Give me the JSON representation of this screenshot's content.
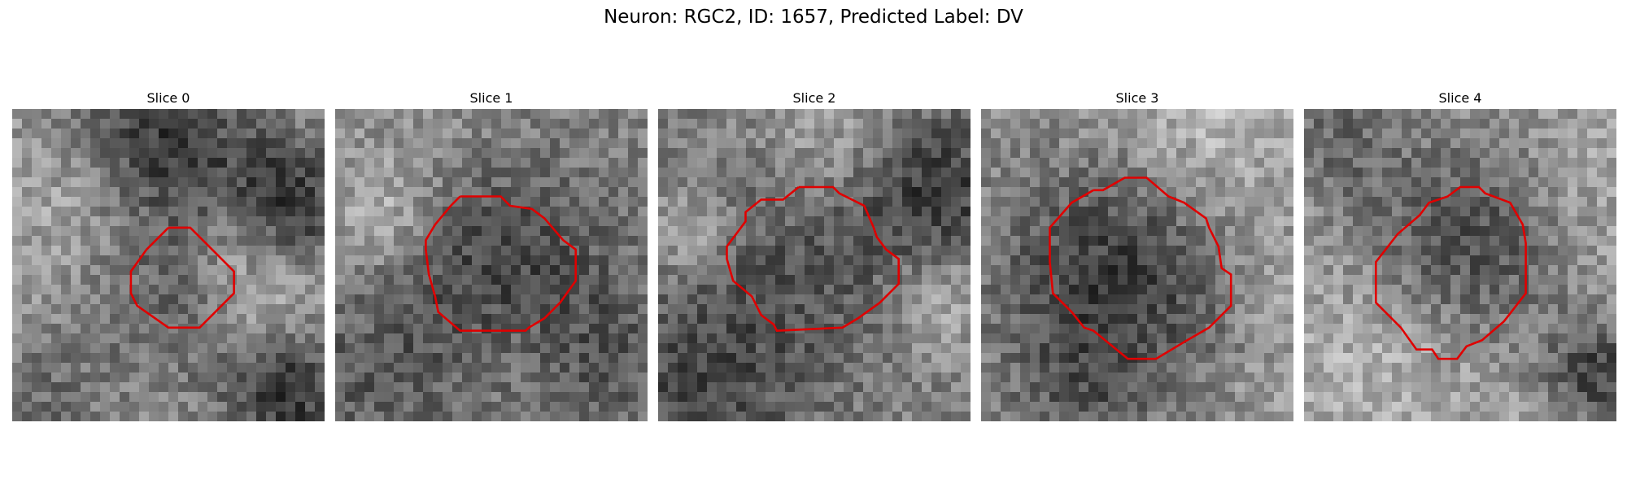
{
  "figure": {
    "title": "Neuron: RGC2, ID: 1657, Predicted Label: DV"
  },
  "panels": [
    {
      "title": "Slice 0",
      "outline_color": "#e00000"
    },
    {
      "title": "Slice 1",
      "outline_color": "#e00000"
    },
    {
      "title": "Slice 2",
      "outline_color": "#e00000"
    },
    {
      "title": "Slice 3",
      "outline_color": "#e00000"
    },
    {
      "title": "Slice 4",
      "outline_color": "#e00000"
    }
  ],
  "colors": {
    "background": "#ffffff",
    "outline": "#e00000"
  }
}
